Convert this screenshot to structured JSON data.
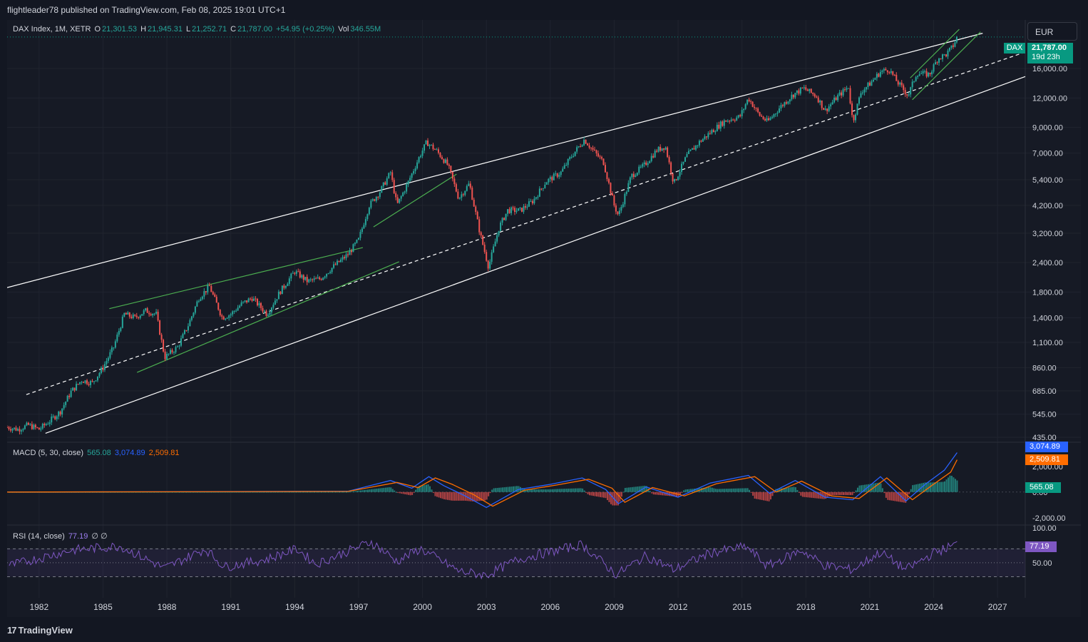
{
  "header": {
    "publisher_line": "flightleader78 published on TradingView.com, Feb 08, 2025 19:01 UTC+1"
  },
  "legend": {
    "symbol": "DAX Index, 1M, XETR",
    "o_label": "O",
    "o_value": "21,301.53",
    "h_label": "H",
    "h_value": "21,945.31",
    "l_label": "L",
    "l_value": "21,252.71",
    "c_label": "C",
    "c_value": "21,787.00",
    "change": "+54.95 (+0.25%)",
    "vol_label": "Vol",
    "vol_value": "346.55M"
  },
  "currency": "EUR",
  "price_tag": {
    "symbol": "DAX",
    "price": "21,787.00",
    "countdown": "19d 23h"
  },
  "macd": {
    "label": "MACD (5, 30, close)",
    "hist_value": "565.08",
    "macd_value": "3,074.89",
    "signal_value": "2,509.81",
    "axis_labels": [
      "2,000.00",
      "0.00",
      "-2,000.00"
    ]
  },
  "rsi": {
    "label": "RSI (14, close)",
    "value": "77.19",
    "extra": "∅ ∅",
    "axis_labels": [
      "100.00",
      "50.00"
    ]
  },
  "footer": {
    "brand": "TradingView"
  },
  "colors": {
    "up": "#26a69a",
    "down": "#ef5350",
    "macd": "#2962ff",
    "signal": "#ff6d00",
    "rsi": "#7e57c2",
    "channel": "#ffffff",
    "trend": "#4caf50",
    "bg": "#161a25"
  },
  "chart_data": [
    {
      "type": "candlestick",
      "title": "DAX Index, 1M, XETR",
      "scale": "log",
      "ylim": [
        420,
        24000
      ],
      "y_ticks": [
        435,
        545,
        685,
        860,
        1100,
        1400,
        1800,
        2400,
        3200,
        4200,
        5400,
        7000,
        9000,
        12000,
        16000
      ],
      "y_tick_labels": [
        "435.00",
        "545.00",
        "685.00",
        "860.00",
        "1,100.00",
        "1,400.00",
        "1,800.00",
        "2,400.00",
        "3,200.00",
        "4,200.00",
        "5,400.00",
        "7,000.00",
        "9,000.00",
        "12,000.00",
        "16,000.00"
      ],
      "x_range": [
        1980.5,
        2028.3
      ],
      "x_ticks": [
        1982,
        1985,
        1988,
        1991,
        1994,
        1997,
        2000,
        2003,
        2006,
        2009,
        2012,
        2015,
        2018,
        2021,
        2024,
        2027
      ],
      "x_tick_labels": [
        "1982",
        "1985",
        "1988",
        "1991",
        "1994",
        "1997",
        "2000",
        "2003",
        "2006",
        "2009",
        "2012",
        "2015",
        "2018",
        "2021",
        "2024",
        "2027"
      ],
      "series_points": [
        [
          1980.5,
          480
        ],
        [
          1981.0,
          470
        ],
        [
          1981.5,
          490
        ],
        [
          1982.0,
          470
        ],
        [
          1982.5,
          510
        ],
        [
          1983.0,
          560
        ],
        [
          1983.5,
          680
        ],
        [
          1984.0,
          760
        ],
        [
          1984.5,
          740
        ],
        [
          1985.0,
          860
        ],
        [
          1985.5,
          1050
        ],
        [
          1986.0,
          1450
        ],
        [
          1986.5,
          1400
        ],
        [
          1987.0,
          1500
        ],
        [
          1987.5,
          1450
        ],
        [
          1987.9,
          950
        ],
        [
          1988.5,
          1050
        ],
        [
          1989.0,
          1300
        ],
        [
          1989.5,
          1700
        ],
        [
          1990.0,
          1900
        ],
        [
          1990.6,
          1400
        ],
        [
          1991.0,
          1450
        ],
        [
          1991.5,
          1600
        ],
        [
          1992.0,
          1700
        ],
        [
          1992.7,
          1450
        ],
        [
          1993.3,
          1800
        ],
        [
          1994.0,
          2200
        ],
        [
          1994.6,
          2000
        ],
        [
          1995.2,
          2050
        ],
        [
          1995.8,
          2300
        ],
        [
          1996.5,
          2600
        ],
        [
          1997.0,
          3000
        ],
        [
          1997.5,
          4200
        ],
        [
          1998.0,
          4800
        ],
        [
          1998.5,
          5800
        ],
        [
          1998.8,
          4200
        ],
        [
          1999.3,
          5200
        ],
        [
          1999.9,
          6900
        ],
        [
          2000.2,
          7800
        ],
        [
          2000.7,
          7100
        ],
        [
          2001.2,
          6200
        ],
        [
          2001.7,
          4500
        ],
        [
          2002.2,
          5200
        ],
        [
          2002.7,
          3200
        ],
        [
          2003.1,
          2300
        ],
        [
          2003.6,
          3400
        ],
        [
          2004.0,
          4000
        ],
        [
          2004.6,
          4000
        ],
        [
          2005.2,
          4400
        ],
        [
          2005.8,
          5300
        ],
        [
          2006.5,
          5800
        ],
        [
          2007.0,
          6800
        ],
        [
          2007.6,
          8000
        ],
        [
          2008.0,
          7200
        ],
        [
          2008.5,
          6400
        ],
        [
          2009.0,
          4200
        ],
        [
          2009.2,
          3800
        ],
        [
          2009.8,
          5600
        ],
        [
          2010.4,
          6200
        ],
        [
          2011.0,
          7200
        ],
        [
          2011.4,
          7500
        ],
        [
          2011.8,
          5200
        ],
        [
          2012.4,
          6800
        ],
        [
          2013.0,
          7800
        ],
        [
          2013.6,
          8700
        ],
        [
          2014.2,
          9600
        ],
        [
          2014.9,
          10000
        ],
        [
          2015.3,
          12000
        ],
        [
          2015.8,
          10200
        ],
        [
          2016.2,
          9500
        ],
        [
          2016.8,
          11000
        ],
        [
          2017.4,
          12400
        ],
        [
          2017.9,
          13200
        ],
        [
          2018.5,
          12200
        ],
        [
          2018.9,
          10600
        ],
        [
          2019.5,
          12200
        ],
        [
          2020.0,
          13400
        ],
        [
          2020.2,
          9500
        ],
        [
          2020.6,
          12800
        ],
        [
          2021.0,
          13800
        ],
        [
          2021.5,
          15500
        ],
        [
          2021.9,
          15900
        ],
        [
          2022.3,
          14000
        ],
        [
          2022.8,
          12300
        ],
        [
          2023.2,
          15300
        ],
        [
          2023.8,
          15100
        ],
        [
          2024.2,
          17700
        ],
        [
          2024.6,
          18400
        ],
        [
          2024.9,
          19900
        ],
        [
          2025.1,
          21787
        ]
      ],
      "annotations": "Upper and lower white channel lines, dashed white midline, green trendlines and rising wedges"
    },
    {
      "type": "line",
      "title": "MACD (5, 30, close)",
      "ylim": [
        -2400,
        3600
      ],
      "series": [
        {
          "name": "MACD",
          "x": [
            1980.5,
            1996.5,
            1998.5,
            1999.5,
            2000.3,
            2001.0,
            2002.0,
            2003.0,
            2004.5,
            2006.0,
            2007.5,
            2008.6,
            2009.2,
            2010.5,
            2012.0,
            2013.5,
            2015.3,
            2016.3,
            2017.5,
            2018.9,
            2020.2,
            2021.5,
            2022.7,
            2023.6,
            2024.5,
            2025.1
          ],
          "values": [
            0,
            60,
            900,
            300,
            1200,
            500,
            -300,
            -1200,
            200,
            600,
            1100,
            200,
            -900,
            400,
            -400,
            700,
            1300,
            -100,
            900,
            -400,
            -600,
            1200,
            -700,
            600,
            1700,
            3074.89
          ]
        },
        {
          "name": "Signal",
          "x": [
            1980.5,
            1996.5,
            1998.8,
            1999.8,
            2000.6,
            2001.4,
            2002.4,
            2003.3,
            2004.8,
            2006.3,
            2007.8,
            2008.9,
            2009.5,
            2010.8,
            2012.3,
            2013.8,
            2015.6,
            2016.6,
            2017.8,
            2019.2,
            2020.5,
            2021.8,
            2023.0,
            2023.9,
            2024.8,
            2025.1
          ],
          "values": [
            0,
            50,
            750,
            350,
            1100,
            600,
            -200,
            -1100,
            150,
            550,
            1000,
            300,
            -800,
            350,
            -300,
            650,
            1200,
            0,
            850,
            -300,
            -500,
            1100,
            -600,
            500,
            1550,
            2509.81
          ]
        }
      ],
      "histogram_last": 565.08
    },
    {
      "type": "line",
      "title": "RSI (14, close)",
      "ylim": [
        10,
        100
      ],
      "bands": [
        70,
        50,
        30
      ],
      "series": [
        {
          "name": "RSI",
          "x": [
            1980.5,
            1983.5,
            1985.8,
            1987.9,
            1989.8,
            1990.7,
            1992.7,
            1994.1,
            1995.0,
            1997.6,
            1998.8,
            1999.9,
            2001.7,
            2003.0,
            2004.5,
            2007.5,
            2009.1,
            2010.5,
            2011.8,
            2013.5,
            2015.2,
            2016.2,
            2017.8,
            2018.9,
            2020.2,
            2021.5,
            2022.7,
            2024.0,
            2025.1
          ],
          "values": [
            45,
            68,
            74,
            42,
            70,
            44,
            55,
            70,
            48,
            80,
            52,
            70,
            38,
            32,
            55,
            76,
            33,
            60,
            40,
            64,
            73,
            45,
            68,
            46,
            40,
            65,
            40,
            64,
            77.19
          ]
        }
      ]
    }
  ]
}
